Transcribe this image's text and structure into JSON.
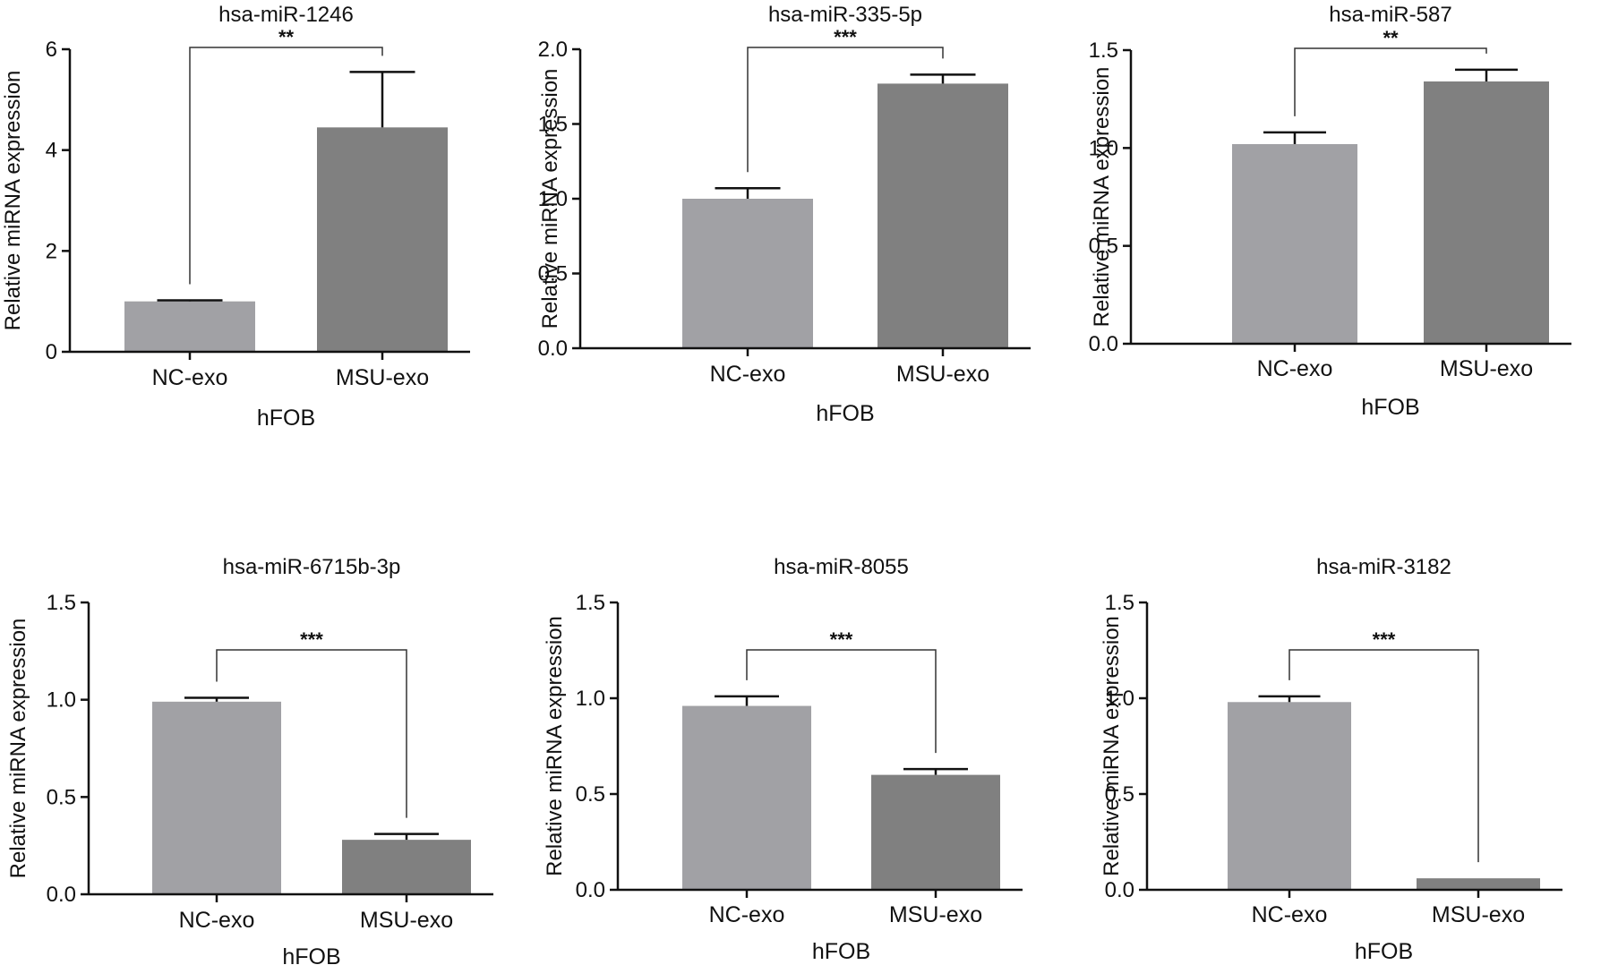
{
  "chart_data": [
    {
      "type": "bar",
      "title": "hsa-miR-1246",
      "categories": [
        "NC-exo",
        "MSU-exo"
      ],
      "values": [
        1.0,
        4.45
      ],
      "errors": [
        0.02,
        1.1
      ],
      "xlabel": "hFOB",
      "ylabel": "Relative miRNA expression",
      "ylim": [
        0,
        6
      ],
      "yticks": [
        "0",
        "2",
        "4",
        "6"
      ],
      "significance": "**",
      "bar_colors": [
        "#a1a1a5",
        "#808080"
      ]
    },
    {
      "type": "bar",
      "title": "hsa-miR-335-5p",
      "categories": [
        "NC-exo",
        "MSU-exo"
      ],
      "values": [
        1.0,
        1.77
      ],
      "errors": [
        0.07,
        0.06
      ],
      "xlabel": "hFOB",
      "ylabel": "Relative miRNA expression",
      "ylim": [
        0,
        2.0
      ],
      "yticks": [
        "0.0",
        "0.5",
        "1.0",
        "1.5",
        "2.0"
      ],
      "significance": "***",
      "bar_colors": [
        "#a1a1a5",
        "#808080"
      ]
    },
    {
      "type": "bar",
      "title": "hsa-miR-587",
      "categories": [
        "NC-exo",
        "MSU-exo"
      ],
      "values": [
        1.02,
        1.34
      ],
      "errors": [
        0.06,
        0.06
      ],
      "xlabel": "hFOB",
      "ylabel": "Relative miRNA expression",
      "ylim": [
        0,
        1.5
      ],
      "yticks": [
        "0.0",
        "0.5",
        "1.0",
        "1.5"
      ],
      "significance": "**",
      "bar_colors": [
        "#a1a1a5",
        "#808080"
      ]
    },
    {
      "type": "bar",
      "title": "hsa-miR-6715b-3p",
      "categories": [
        "NC-exo",
        "MSU-exo"
      ],
      "values": [
        0.99,
        0.28
      ],
      "errors": [
        0.02,
        0.03
      ],
      "xlabel": "hFOB",
      "ylabel": "Relative miRNA expression",
      "ylim": [
        0,
        1.5
      ],
      "yticks": [
        "0.0",
        "0.5",
        "1.0",
        "1.5"
      ],
      "significance": "***",
      "bar_colors": [
        "#a1a1a5",
        "#808080"
      ]
    },
    {
      "type": "bar",
      "title": "hsa-miR-8055",
      "categories": [
        "NC-exo",
        "MSU-exo"
      ],
      "values": [
        0.96,
        0.6
      ],
      "errors": [
        0.05,
        0.03
      ],
      "xlabel": "hFOB",
      "ylabel": "Relative miRNA expression",
      "ylim": [
        0,
        1.5
      ],
      "yticks": [
        "0.0",
        "0.5",
        "1.0",
        "1.5"
      ],
      "significance": "***",
      "bar_colors": [
        "#a1a1a5",
        "#808080"
      ]
    },
    {
      "type": "bar",
      "title": "hsa-miR-3182",
      "categories": [
        "NC-exo",
        "MSU-exo"
      ],
      "values": [
        0.98,
        0.06
      ],
      "errors": [
        0.03,
        0.0
      ],
      "xlabel": "hFOB",
      "ylabel": "Relative miRNA expression",
      "ylim": [
        0,
        1.5
      ],
      "yticks": [
        "0.0",
        "0.5",
        "1.0",
        "1.5"
      ],
      "significance": "***",
      "bar_colors": [
        "#a1a1a5",
        "#808080"
      ]
    }
  ]
}
